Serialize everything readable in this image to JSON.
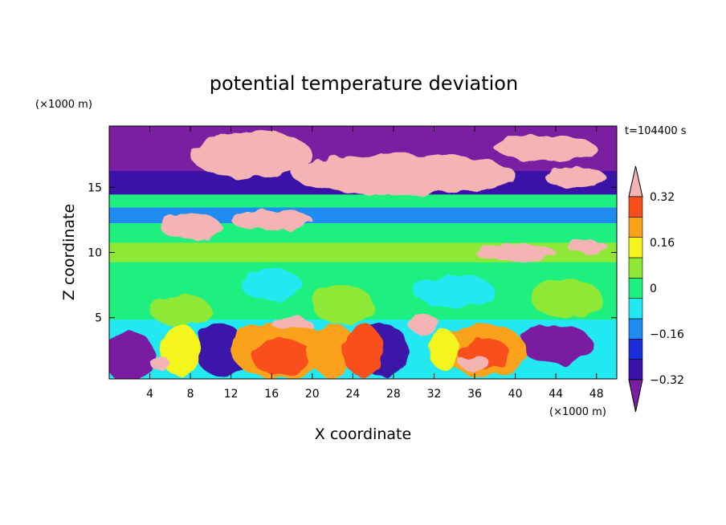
{
  "chart_data": {
    "type": "heatmap",
    "title": "potential temperature deviation",
    "xlabel": "X coordinate",
    "ylabel": "Z coordinate",
    "x_unit": "(×1000 m)",
    "y_unit": "(×1000 m)",
    "time_label": "t=104400 s",
    "xlim": [
      0,
      50
    ],
    "ylim": [
      0.3,
      19.7
    ],
    "x_ticks": [
      4,
      8,
      12,
      16,
      20,
      24,
      28,
      32,
      36,
      40,
      44,
      48
    ],
    "x_tick_labels": [
      "4",
      "8",
      "12",
      "16",
      "20",
      "24",
      "28",
      "32",
      "36",
      "40",
      "44",
      "48"
    ],
    "y_ticks": [
      5,
      10,
      15
    ],
    "y_tick_labels": [
      "5",
      "10",
      "15"
    ],
    "colorbar": {
      "levels": [
        -0.4,
        -0.32,
        -0.24,
        -0.16,
        -0.08,
        0,
        0.08,
        0.16,
        0.24,
        0.32,
        0.4
      ],
      "tick_values": [
        0.32,
        0.16,
        0,
        -0.16,
        -0.32
      ],
      "tick_labels": [
        "0.32",
        "0.16",
        "0",
        "−0.16",
        "−0.32"
      ],
      "colors": [
        "#7a1fa2",
        "#3a12a8",
        "#1a2fd8",
        "#1e8cf0",
        "#22e8f2",
        "#1ef080",
        "#8ee836",
        "#f4f51c",
        "#fba21a",
        "#f8501a",
        "#f4b4b4"
      ],
      "extend": "both"
    },
    "bands": [
      {
        "z": [
          16,
          19.7
        ],
        "level": -0.4
      },
      {
        "z": [
          14.2,
          16
        ],
        "level": -0.32
      },
      {
        "z": [
          13.2,
          14.2
        ],
        "level": 0
      },
      {
        "z": [
          12,
          13.2
        ],
        "level": -0.16
      },
      {
        "z": [
          10.5,
          12
        ],
        "level": 0
      },
      {
        "z": [
          9,
          10.5
        ],
        "level": 0.08
      },
      {
        "z": [
          5,
          9
        ],
        "level": 0
      },
      {
        "z": [
          0.3,
          4.6
        ],
        "level": -0.08
      }
    ],
    "blobs": [
      {
        "x": 14,
        "z": 17.5,
        "rx": 6,
        "rz": 1.8,
        "level": 0.4
      },
      {
        "x": 29,
        "z": 16,
        "rx": 11,
        "rz": 1.6,
        "level": 0.4
      },
      {
        "x": 43,
        "z": 18,
        "rx": 5,
        "rz": 1,
        "level": 0.4
      },
      {
        "x": 46,
        "z": 15.7,
        "rx": 3,
        "rz": 0.8,
        "level": 0.4
      },
      {
        "x": 8,
        "z": 12,
        "rx": 3,
        "rz": 1,
        "level": 0.4
      },
      {
        "x": 16,
        "z": 12.5,
        "rx": 4,
        "rz": 0.8,
        "level": 0.4
      },
      {
        "x": 40,
        "z": 10,
        "rx": 4,
        "rz": 0.6,
        "level": 0.4
      },
      {
        "x": 47,
        "z": 10.5,
        "rx": 2,
        "rz": 0.5,
        "level": 0.4
      },
      {
        "x": 7,
        "z": 5.6,
        "rx": 3,
        "rz": 1.2,
        "level": 0.08
      },
      {
        "x": 23,
        "z": 6,
        "rx": 3,
        "rz": 1.5,
        "level": 0.08
      },
      {
        "x": 45,
        "z": 6.5,
        "rx": 3.5,
        "rz": 1.5,
        "level": 0.08
      },
      {
        "x": 34,
        "z": 7,
        "rx": 4,
        "rz": 1.2,
        "level": -0.08
      },
      {
        "x": 16,
        "z": 7.5,
        "rx": 3,
        "rz": 1.2,
        "level": -0.08
      },
      {
        "x": 2,
        "z": 2,
        "rx": 2.5,
        "rz": 2,
        "level": -0.4
      },
      {
        "x": 11,
        "z": 2.5,
        "rx": 2.5,
        "rz": 2,
        "level": -0.32
      },
      {
        "x": 27,
        "z": 2.5,
        "rx": 2.5,
        "rz": 2,
        "level": -0.32
      },
      {
        "x": 44,
        "z": 3,
        "rx": 3.5,
        "rz": 1.5,
        "level": -0.4
      },
      {
        "x": 7,
        "z": 2.5,
        "rx": 2,
        "rz": 2,
        "level": 0.16
      },
      {
        "x": 17,
        "z": 2.5,
        "rx": 5,
        "rz": 2.2,
        "level": 0.24
      },
      {
        "x": 17,
        "z": 2,
        "rx": 3,
        "rz": 1.4,
        "level": 0.32
      },
      {
        "x": 22,
        "z": 2.5,
        "rx": 2.5,
        "rz": 2,
        "level": 0.24
      },
      {
        "x": 25,
        "z": 2.5,
        "rx": 2,
        "rz": 2,
        "level": 0.32
      },
      {
        "x": 37,
        "z": 2.5,
        "rx": 4,
        "rz": 2,
        "level": 0.24
      },
      {
        "x": 37,
        "z": 2.2,
        "rx": 2.5,
        "rz": 1.2,
        "level": 0.32
      },
      {
        "x": 33,
        "z": 2.5,
        "rx": 1.5,
        "rz": 1.5,
        "level": 0.16
      },
      {
        "x": 31,
        "z": 4.5,
        "rx": 1.5,
        "rz": 0.8,
        "level": 0.4
      },
      {
        "x": 18,
        "z": 4.5,
        "rx": 2,
        "rz": 0.5,
        "level": 0.4
      },
      {
        "x": 5,
        "z": 1.5,
        "rx": 1,
        "rz": 0.5,
        "level": 0.4
      },
      {
        "x": 36,
        "z": 1.5,
        "rx": 1.5,
        "rz": 0.6,
        "level": 0.4
      }
    ]
  }
}
